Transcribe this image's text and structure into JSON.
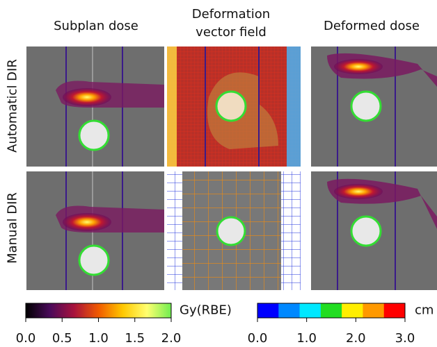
{
  "figure": {
    "column_titles": [
      "Subplan dose",
      "Deformation vector field",
      "Deformed dose"
    ],
    "row_labels": [
      "Automaticl DIR",
      "Manual DIR"
    ],
    "colorbars": [
      {
        "label": "Gy(RBE)",
        "style": "continuous",
        "lim": [
          0,
          2
        ],
        "colors": [
          "#000000",
          "#4a0a5a",
          "#a8123c",
          "#f05a00",
          "#ffc800",
          "#ffff70",
          "#70ee50"
        ],
        "ticks": [
          {
            "value": 0,
            "label": "0.0"
          },
          {
            "value": 0.5,
            "label": "0.5"
          },
          {
            "value": 1,
            "label": "1.0"
          },
          {
            "value": 1.5,
            "label": "1.5"
          },
          {
            "value": 2,
            "label": "2.0"
          }
        ]
      },
      {
        "label": "cm",
        "style": "discrete",
        "lim": [
          0,
          3
        ],
        "colors": [
          "#0000ff",
          "#0088ff",
          "#00e8ff",
          "#22dd22",
          "#ffee00",
          "#ff9900",
          "#ff0000"
        ],
        "ticks": [
          {
            "value": 0,
            "label": "0.0"
          },
          {
            "value": 1,
            "label": "1.0"
          },
          {
            "value": 2,
            "label": "2.0"
          },
          {
            "value": 3,
            "label": "3.0"
          }
        ]
      }
    ]
  }
}
